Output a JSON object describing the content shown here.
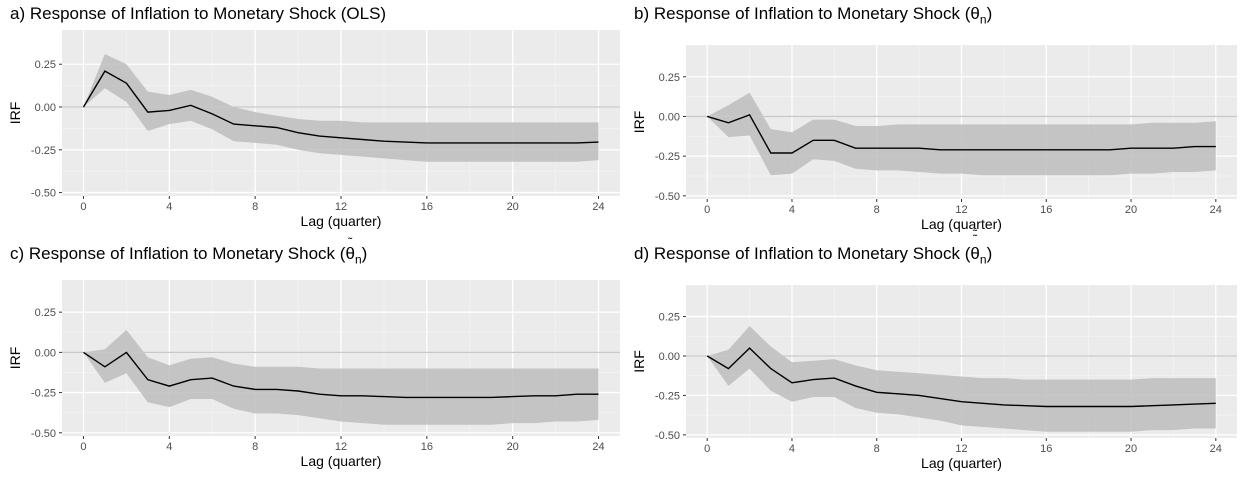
{
  "chart_data": [
    {
      "type": "line",
      "title_prefix": "a) Response of Inflation to Monetary Shock ",
      "title_symbol": "(OLS)",
      "title_symbol_type": "text",
      "xlabel": "Lag (quarter)",
      "ylabel": "IRF",
      "xlim": [
        -1,
        25
      ],
      "ylim": [
        -0.52,
        0.45
      ],
      "xticks": [
        0,
        4,
        8,
        12,
        16,
        20,
        24
      ],
      "xtick_labels": [
        "0",
        "4",
        "8",
        "12",
        "16",
        "20",
        "24"
      ],
      "yticks": [
        -0.5,
        -0.25,
        0,
        0.25
      ],
      "ytick_labels": [
        "-0.50",
        "-0.25",
        "0.00",
        "0.25"
      ],
      "grid": true,
      "x": [
        0,
        1,
        2,
        3,
        4,
        5,
        6,
        7,
        8,
        9,
        10,
        11,
        12,
        13,
        14,
        15,
        16,
        17,
        18,
        19,
        20,
        21,
        22,
        23,
        24
      ],
      "irf": [
        0.0,
        0.21,
        0.14,
        -0.03,
        -0.02,
        0.01,
        -0.04,
        -0.1,
        -0.11,
        -0.12,
        -0.15,
        -0.17,
        -0.18,
        -0.19,
        -0.2,
        -0.205,
        -0.21,
        -0.21,
        -0.21,
        -0.21,
        -0.21,
        -0.21,
        -0.21,
        -0.21,
        -0.205
      ],
      "upper": [
        0.0,
        0.31,
        0.25,
        0.09,
        0.07,
        0.1,
        0.06,
        0.0,
        -0.03,
        -0.05,
        -0.07,
        -0.08,
        -0.08,
        -0.09,
        -0.09,
        -0.09,
        -0.09,
        -0.09,
        -0.09,
        -0.09,
        -0.09,
        -0.09,
        -0.09,
        -0.09,
        -0.09
      ],
      "lower": [
        0.0,
        0.11,
        0.03,
        -0.14,
        -0.1,
        -0.08,
        -0.13,
        -0.2,
        -0.21,
        -0.22,
        -0.25,
        -0.27,
        -0.28,
        -0.29,
        -0.3,
        -0.31,
        -0.32,
        -0.32,
        -0.32,
        -0.32,
        -0.32,
        -0.32,
        -0.32,
        -0.32,
        -0.31
      ]
    },
    {
      "type": "line",
      "title_prefix": "b) Response of Inflation to Monetary Shock ",
      "title_symbol": "hat",
      "title_symbol_type": "theta",
      "xlabel": "Lag (quarter)",
      "ylabel": "IRF",
      "xlim": [
        -1,
        25
      ],
      "ylim": [
        -0.52,
        0.45
      ],
      "xticks": [
        0,
        4,
        8,
        12,
        16,
        20,
        24
      ],
      "xtick_labels": [
        "0",
        "4",
        "8",
        "12",
        "16",
        "20",
        "24"
      ],
      "yticks": [
        -0.5,
        -0.25,
        0,
        0.25
      ],
      "ytick_labels": [
        "-0.50",
        "-0.25",
        "0.00",
        "0.25"
      ],
      "grid": true,
      "x": [
        0,
        1,
        2,
        3,
        4,
        5,
        6,
        7,
        8,
        9,
        10,
        11,
        12,
        13,
        14,
        15,
        16,
        17,
        18,
        19,
        20,
        21,
        22,
        23,
        24
      ],
      "irf": [
        0.0,
        -0.04,
        0.01,
        -0.23,
        -0.23,
        -0.15,
        -0.15,
        -0.2,
        -0.2,
        -0.2,
        -0.2,
        -0.21,
        -0.21,
        -0.21,
        -0.21,
        -0.21,
        -0.21,
        -0.21,
        -0.21,
        -0.21,
        -0.2,
        -0.2,
        -0.2,
        -0.19,
        -0.19
      ],
      "upper": [
        0.0,
        0.07,
        0.15,
        -0.08,
        -0.1,
        -0.02,
        -0.02,
        -0.06,
        -0.06,
        -0.05,
        -0.05,
        -0.05,
        -0.05,
        -0.05,
        -0.05,
        -0.05,
        -0.05,
        -0.05,
        -0.05,
        -0.05,
        -0.05,
        -0.04,
        -0.04,
        -0.04,
        -0.03
      ],
      "lower": [
        0.0,
        -0.13,
        -0.12,
        -0.37,
        -0.36,
        -0.27,
        -0.28,
        -0.33,
        -0.34,
        -0.34,
        -0.35,
        -0.36,
        -0.36,
        -0.37,
        -0.37,
        -0.37,
        -0.37,
        -0.37,
        -0.37,
        -0.37,
        -0.36,
        -0.36,
        -0.35,
        -0.35,
        -0.34
      ]
    },
    {
      "type": "line",
      "title_prefix": "c) Response of Inflation to Monetary Shock ",
      "title_symbol": "tilde",
      "title_symbol_type": "theta",
      "xlabel": "Lag (quarter)",
      "ylabel": "IRF",
      "xlim": [
        -1,
        25
      ],
      "ylim": [
        -0.52,
        0.45
      ],
      "xticks": [
        0,
        4,
        8,
        12,
        16,
        20,
        24
      ],
      "xtick_labels": [
        "0",
        "4",
        "8",
        "12",
        "16",
        "20",
        "24"
      ],
      "yticks": [
        -0.5,
        -0.25,
        0,
        0.25
      ],
      "ytick_labels": [
        "-0.50",
        "-0.25",
        "0.00",
        "0.25"
      ],
      "grid": true,
      "x": [
        0,
        1,
        2,
        3,
        4,
        5,
        6,
        7,
        8,
        9,
        10,
        11,
        12,
        13,
        14,
        15,
        16,
        17,
        18,
        19,
        20,
        21,
        22,
        23,
        24
      ],
      "irf": [
        0.0,
        -0.09,
        0.0,
        -0.17,
        -0.21,
        -0.17,
        -0.16,
        -0.21,
        -0.23,
        -0.23,
        -0.24,
        -0.26,
        -0.27,
        -0.27,
        -0.275,
        -0.28,
        -0.28,
        -0.28,
        -0.28,
        -0.28,
        -0.275,
        -0.27,
        -0.27,
        -0.26,
        -0.26
      ],
      "upper": [
        0.0,
        0.02,
        0.14,
        -0.03,
        -0.08,
        -0.04,
        -0.03,
        -0.07,
        -0.09,
        -0.09,
        -0.09,
        -0.1,
        -0.1,
        -0.1,
        -0.1,
        -0.1,
        -0.1,
        -0.1,
        -0.1,
        -0.1,
        -0.1,
        -0.1,
        -0.1,
        -0.1,
        -0.1
      ],
      "lower": [
        0.0,
        -0.19,
        -0.13,
        -0.31,
        -0.34,
        -0.29,
        -0.29,
        -0.35,
        -0.38,
        -0.38,
        -0.39,
        -0.41,
        -0.43,
        -0.44,
        -0.45,
        -0.45,
        -0.45,
        -0.45,
        -0.45,
        -0.45,
        -0.44,
        -0.44,
        -0.43,
        -0.43,
        -0.42
      ]
    },
    {
      "type": "line",
      "title_prefix": "d) Response of Inflation to Monetary Shock ",
      "title_symbol": "double-tilde",
      "title_symbol_type": "theta",
      "xlabel": "Lag (quarter)",
      "ylabel": "IRF",
      "xlim": [
        -1,
        25
      ],
      "ylim": [
        -0.52,
        0.45
      ],
      "xticks": [
        0,
        4,
        8,
        12,
        16,
        20,
        24
      ],
      "xtick_labels": [
        "0",
        "4",
        "8",
        "12",
        "16",
        "20",
        "24"
      ],
      "yticks": [
        -0.5,
        -0.25,
        0,
        0.25
      ],
      "ytick_labels": [
        "-0.50",
        "-0.25",
        "0.00",
        "0.25"
      ],
      "grid": true,
      "x": [
        0,
        1,
        2,
        3,
        4,
        5,
        6,
        7,
        8,
        9,
        10,
        11,
        12,
        13,
        14,
        15,
        16,
        17,
        18,
        19,
        20,
        21,
        22,
        23,
        24
      ],
      "irf": [
        0.0,
        -0.08,
        0.05,
        -0.08,
        -0.17,
        -0.15,
        -0.14,
        -0.19,
        -0.23,
        -0.24,
        -0.25,
        -0.27,
        -0.29,
        -0.3,
        -0.31,
        -0.315,
        -0.32,
        -0.32,
        -0.32,
        -0.32,
        -0.32,
        -0.315,
        -0.31,
        -0.305,
        -0.3
      ],
      "upper": [
        0.0,
        0.04,
        0.19,
        0.06,
        -0.04,
        -0.03,
        -0.02,
        -0.06,
        -0.09,
        -0.1,
        -0.11,
        -0.12,
        -0.13,
        -0.14,
        -0.14,
        -0.15,
        -0.15,
        -0.15,
        -0.15,
        -0.15,
        -0.15,
        -0.14,
        -0.14,
        -0.14,
        -0.14
      ],
      "lower": [
        0.0,
        -0.19,
        -0.08,
        -0.22,
        -0.29,
        -0.26,
        -0.26,
        -0.33,
        -0.36,
        -0.37,
        -0.39,
        -0.41,
        -0.44,
        -0.45,
        -0.46,
        -0.47,
        -0.48,
        -0.48,
        -0.48,
        -0.48,
        -0.48,
        -0.47,
        -0.47,
        -0.46,
        -0.46
      ]
    }
  ],
  "colors": {
    "panel_bg": "#ebebeb",
    "grid_major": "#ffffff",
    "grid_minor": "#f4f4f4",
    "band": "#bdbdbd",
    "zero_line": "#c8c8c8",
    "line": "#000000",
    "tick_text": "#4d4d4d",
    "axis_text": "#000000"
  }
}
